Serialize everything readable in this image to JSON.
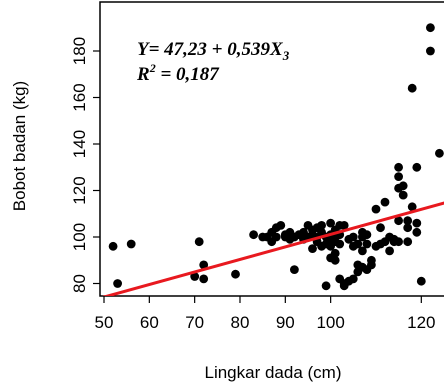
{
  "chart_data": {
    "type": "scatter",
    "title": "",
    "xlabel": "Lingkar dada (cm)",
    "ylabel": "Bobot badan (kg)",
    "xlim": [
      50,
      125
    ],
    "ylim": [
      75,
      190
    ],
    "xticks": [
      50,
      60,
      70,
      80,
      90,
      100,
      120
    ],
    "yticks": [
      80,
      100,
      120,
      140,
      160,
      180
    ],
    "grid": false,
    "legend": "none",
    "point_color": "#000000",
    "line_color": "#e8191f",
    "annotation": {
      "line1_prefix": "Y= 47,23 + 0,539X",
      "line1_sub": "3",
      "line2_prefix": "R",
      "line2_sup": "2",
      "line2_suffix": " = 0,187"
    },
    "regression": {
      "intercept": 47.23,
      "slope": 0.539
    },
    "points": [
      [
        52,
        96
      ],
      [
        53,
        80
      ],
      [
        56,
        97
      ],
      [
        70,
        83
      ],
      [
        71,
        98
      ],
      [
        72,
        88
      ],
      [
        72,
        82
      ],
      [
        79,
        84
      ],
      [
        83,
        101
      ],
      [
        85,
        100
      ],
      [
        86,
        100
      ],
      [
        87,
        102
      ],
      [
        87,
        98
      ],
      [
        88,
        104
      ],
      [
        88,
        100
      ],
      [
        89,
        105
      ],
      [
        90,
        100
      ],
      [
        90,
        101
      ],
      [
        91,
        102
      ],
      [
        91,
        99
      ],
      [
        92,
        86
      ],
      [
        92,
        100
      ],
      [
        93,
        101
      ],
      [
        94,
        102
      ],
      [
        94,
        99
      ],
      [
        95,
        105
      ],
      [
        95,
        100
      ],
      [
        96,
        101
      ],
      [
        96,
        103
      ],
      [
        96,
        95
      ],
      [
        97,
        104
      ],
      [
        97,
        100
      ],
      [
        97,
        98
      ],
      [
        98,
        102
      ],
      [
        98,
        96
      ],
      [
        98,
        105
      ],
      [
        99,
        100
      ],
      [
        99,
        97
      ],
      [
        99,
        79
      ],
      [
        100,
        101
      ],
      [
        100,
        99
      ],
      [
        100,
        96
      ],
      [
        100,
        106
      ],
      [
        100,
        91
      ],
      [
        101,
        103
      ],
      [
        101,
        100
      ],
      [
        101,
        98
      ],
      [
        101,
        93
      ],
      [
        101,
        90
      ],
      [
        102,
        105
      ],
      [
        102,
        101
      ],
      [
        102,
        97
      ],
      [
        102,
        82
      ],
      [
        103,
        105
      ],
      [
        103,
        80
      ],
      [
        103,
        79
      ],
      [
        104,
        81
      ],
      [
        104,
        99
      ],
      [
        105,
        100
      ],
      [
        105,
        96
      ],
      [
        105,
        82
      ],
      [
        106,
        97
      ],
      [
        106,
        88
      ],
      [
        106,
        85
      ],
      [
        107,
        102
      ],
      [
        107,
        100
      ],
      [
        107,
        94
      ],
      [
        107,
        87
      ],
      [
        108,
        101
      ],
      [
        108,
        97
      ],
      [
        108,
        86
      ],
      [
        109,
        90
      ],
      [
        109,
        88
      ],
      [
        110,
        112
      ],
      [
        110,
        96
      ],
      [
        111,
        104
      ],
      [
        111,
        97
      ],
      [
        112,
        115
      ],
      [
        112,
        98
      ],
      [
        113,
        100
      ],
      [
        113,
        94
      ],
      [
        114,
        99
      ],
      [
        114,
        98
      ],
      [
        115,
        130
      ],
      [
        115,
        126
      ],
      [
        115,
        121
      ],
      [
        115,
        107
      ],
      [
        115,
        98
      ],
      [
        116,
        122
      ],
      [
        116,
        118
      ],
      [
        117,
        107
      ],
      [
        117,
        104
      ],
      [
        117,
        98
      ],
      [
        118,
        113
      ],
      [
        119,
        106
      ],
      [
        119,
        102
      ],
      [
        119,
        130
      ],
      [
        120,
        81
      ],
      [
        122,
        180
      ],
      [
        122,
        190
      ],
      [
        124,
        136
      ],
      [
        118,
        164
      ]
    ]
  }
}
